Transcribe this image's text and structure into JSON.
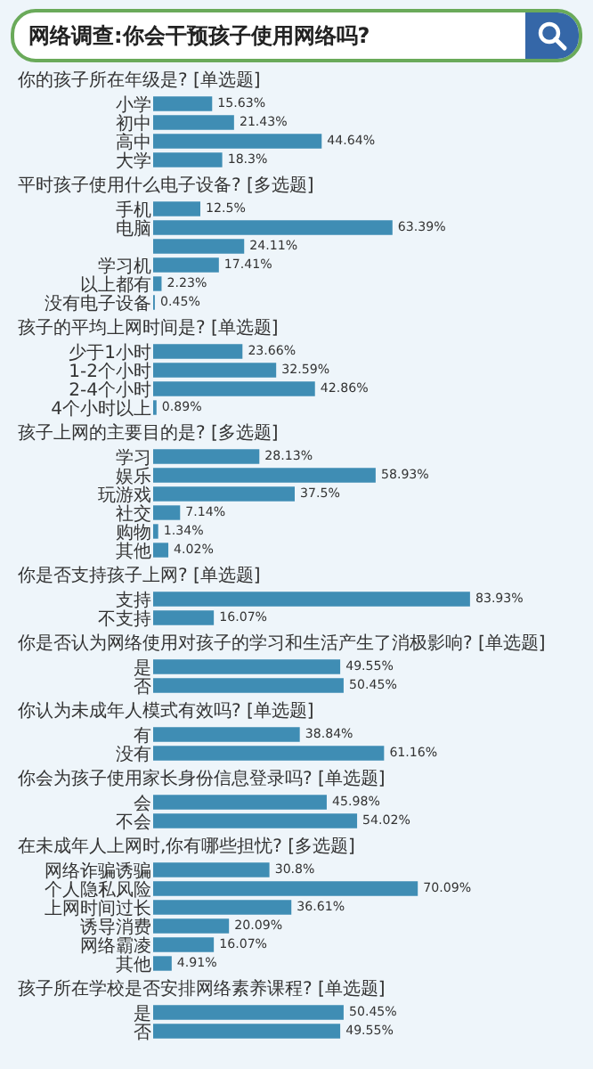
{
  "chart_data": [
    {
      "type": "other",
      "title": "网络调查:你会干预孩子使用网络吗?"
    },
    {
      "type": "bar",
      "orientation": "horizontal",
      "title": "你的孩子所在年级是? [单选题]",
      "categories": [
        "小学",
        "初中",
        "高中",
        "大学"
      ],
      "values": [
        15.63,
        21.43,
        44.64,
        18.3
      ],
      "value_labels": [
        "15.63%",
        "21.43%",
        "44.64%",
        "18.3%"
      ],
      "color": "#3f8db4",
      "tick_labels": "y"
    },
    {
      "type": "bar",
      "orientation": "horizontal",
      "title": "平时孩子使用什么电子设备? [多选题]",
      "categories": [
        "手机",
        "电脑",
        null,
        "学习机",
        "以上都有",
        "没有电子设备"
      ],
      "values": [
        12.5,
        63.39,
        24.11,
        17.41,
        2.23,
        0.45
      ],
      "value_labels": [
        "12.5%",
        "63.39%",
        "24.11%",
        "17.41%",
        "2.23%",
        "0.45%"
      ],
      "color": "#3f8db4",
      "tick_labels": "y"
    },
    {
      "type": "bar",
      "orientation": "horizontal",
      "title": "孩子的平均上网时间是? [单选题]",
      "categories": [
        "少于1小时",
        "1-2个小时",
        "2-4个小时",
        "4个小时以上"
      ],
      "values": [
        23.66,
        32.59,
        42.86,
        0.89
      ],
      "value_labels": [
        "23.66%",
        "32.59%",
        "42.86%",
        "0.89%"
      ],
      "color": "#3f8db4",
      "tick_labels": "y"
    },
    {
      "type": "bar",
      "orientation": "horizontal",
      "title": "孩子上网的主要目的是? [多选题]",
      "categories": [
        "学习",
        "娱乐",
        "玩游戏",
        "社交",
        "购物",
        "其他"
      ],
      "values": [
        28.13,
        58.93,
        37.5,
        7.14,
        1.34,
        4.02
      ],
      "value_labels": [
        "28.13%",
        "58.93%",
        "37.5%",
        "7.14%",
        "1.34%",
        "4.02%"
      ],
      "color": "#3f8db4",
      "tick_labels": "y"
    },
    {
      "type": "bar",
      "orientation": "horizontal",
      "title": "你是否支持孩子上网? [单选题]",
      "categories": [
        "支持",
        "不支持"
      ],
      "values": [
        83.93,
        16.07
      ],
      "value_labels": [
        "83.93%",
        "16.07%"
      ],
      "color": "#3f8db4",
      "tick_labels": "y"
    },
    {
      "type": "bar",
      "orientation": "horizontal",
      "title": "你是否认为网络使用对孩子的学习和生活产生了消极影响? [单选题]",
      "categories": [
        "是",
        "否"
      ],
      "values": [
        49.55,
        50.45
      ],
      "value_labels": [
        "49.55%",
        "50.45%"
      ],
      "color": "#3f8db4",
      "tick_labels": "y"
    },
    {
      "type": "bar",
      "orientation": "horizontal",
      "title": "你认为未成年人模式有效吗? [单选题]",
      "categories": [
        "有",
        "没有"
      ],
      "values": [
        38.84,
        61.16
      ],
      "value_labels": [
        "38.84%",
        "61.16%"
      ],
      "color": "#3f8db4",
      "tick_labels": "y"
    },
    {
      "type": "bar",
      "orientation": "horizontal",
      "title": "你会为孩子使用家长身份信息登录吗? [单选题]",
      "categories": [
        "会",
        "不会"
      ],
      "values": [
        45.98,
        54.02
      ],
      "value_labels": [
        "45.98%",
        "54.02%"
      ],
      "color": "#3f8db4",
      "tick_labels": "y"
    },
    {
      "type": "bar",
      "orientation": "horizontal",
      "title": "在未成年人上网时,你有哪些担忧? [多选题]",
      "categories": [
        "网络诈骗诱骗",
        "个人隐私风险",
        "上网时间过长",
        "诱导消费",
        "网络霸凌",
        "其他"
      ],
      "values": [
        30.8,
        70.09,
        36.61,
        20.09,
        16.07,
        4.91
      ],
      "value_labels": [
        "30.8%",
        "70.09%",
        "36.61%",
        "20.09%",
        "16.07%",
        "4.91%"
      ],
      "color": "#3f8db4",
      "tick_labels": "y"
    },
    {
      "type": "bar",
      "orientation": "horizontal",
      "title": "孩子所在学校是否安排网络素养课程? [单选题]",
      "categories": [
        "是",
        "否"
      ],
      "values": [
        50.45,
        49.55
      ],
      "value_labels": [
        "50.45%",
        "49.55%"
      ],
      "color": "#3f8db4",
      "tick_labels": "y"
    }
  ]
}
